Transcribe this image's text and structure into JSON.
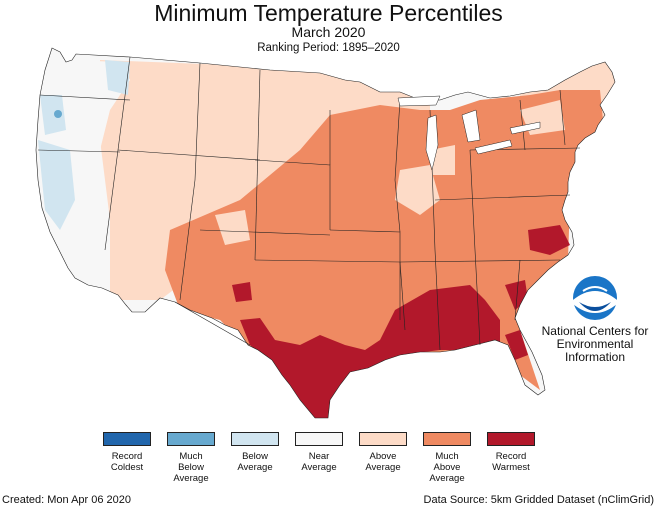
{
  "header": {
    "title": "Minimum Temperature Percentiles",
    "subtitle": "March 2020",
    "ranking_period": "Ranking Period: 1895–2020"
  },
  "logo": {
    "badge": "NOAA",
    "text": "National Centers for\nEnvironmental\nInformation"
  },
  "legend": [
    {
      "label": "Record\nColdest",
      "color": "#2166ac"
    },
    {
      "label": "Much\nBelow\nAverage",
      "color": "#67a9cf"
    },
    {
      "label": "Below\nAverage",
      "color": "#d1e5f0"
    },
    {
      "label": "Near\nAverage",
      "color": "#f7f7f7"
    },
    {
      "label": "Above\nAverage",
      "color": "#fddbc7"
    },
    {
      "label": "Much\nAbove\nAverage",
      "color": "#ef8a62"
    },
    {
      "label": "Record\nWarmest",
      "color": "#b2182b"
    }
  ],
  "footer": {
    "created": "Created: Mon Apr 06 2020",
    "source": "Data Source: 5km Gridded Dataset (nClimGrid)"
  }
}
